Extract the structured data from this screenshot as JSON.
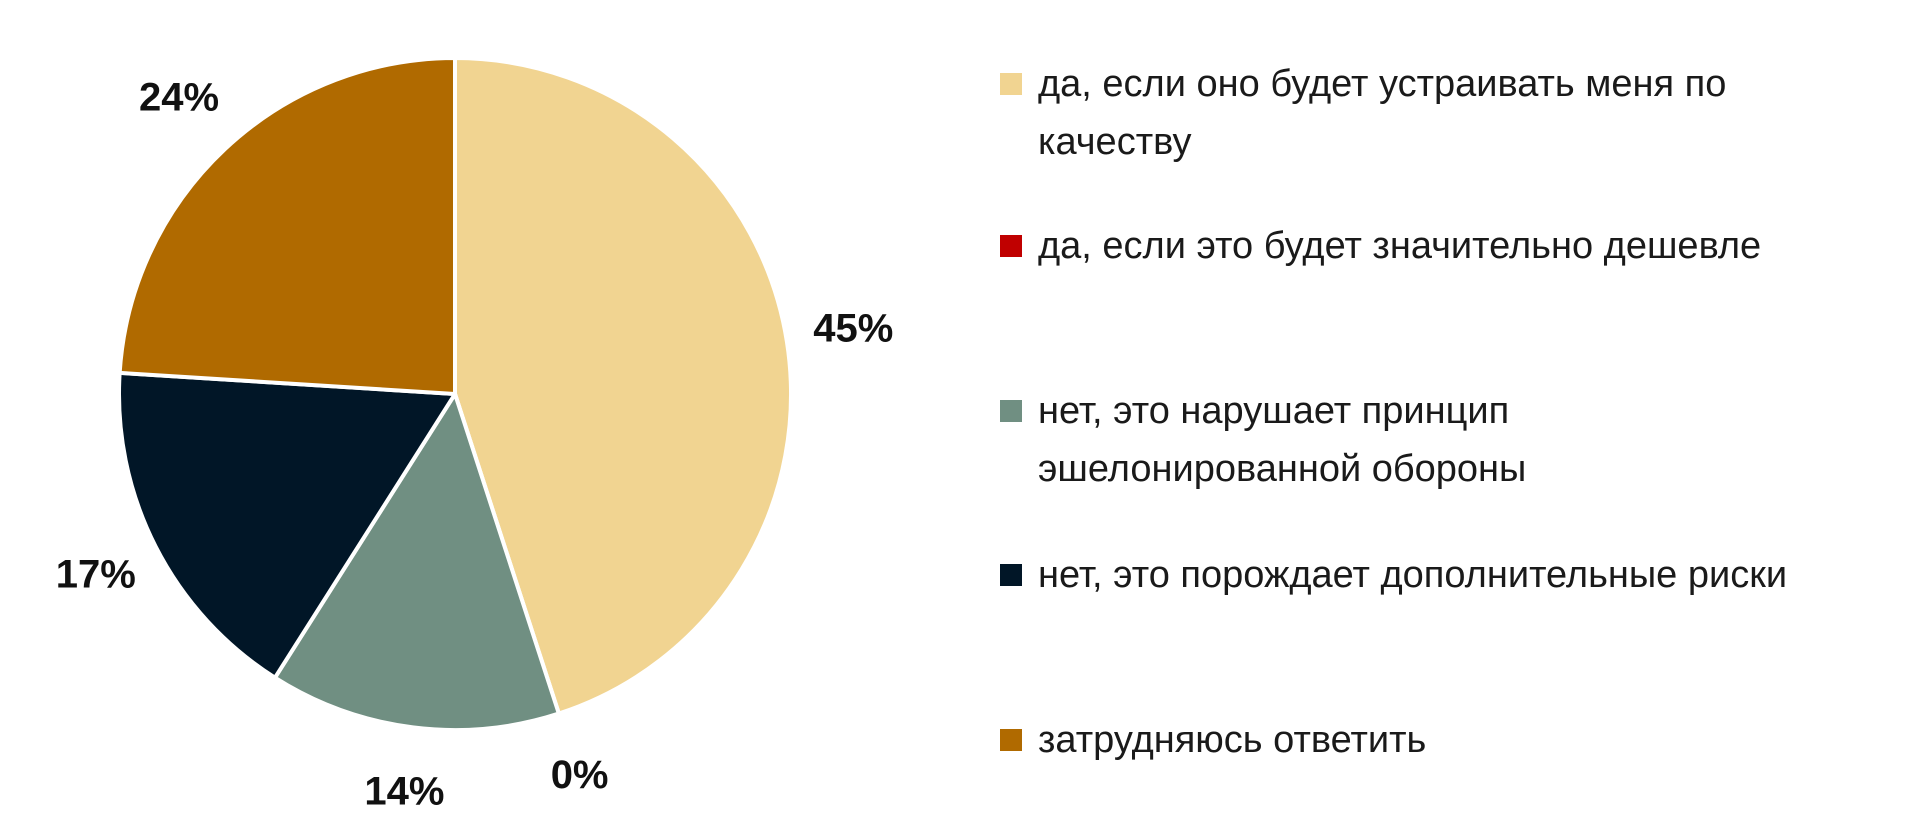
{
  "chart_data": {
    "type": "pie",
    "series": [
      {
        "name": "да, если оно будет устраивать меня по качеству",
        "color": "#f1d491",
        "values": [
          45
        ],
        "value_labels": [
          "45%"
        ]
      },
      {
        "name": "да, если это будет значительно дешевле",
        "color": "#c00000",
        "values": [
          0
        ],
        "value_labels": [
          "0%"
        ]
      },
      {
        "name": "нет, это нарушает принцип эшелонированной обороны",
        "color": "#708f82",
        "values": [
          14
        ],
        "value_labels": [
          "14%"
        ]
      },
      {
        "name": "нет, это порождает дополнительные риски",
        "color": "#011627",
        "values": [
          17
        ],
        "value_labels": [
          "17%"
        ]
      },
      {
        "name": "затрудняюсь ответить",
        "color": "#b06a00",
        "values": [
          24
        ],
        "value_labels": [
          "24%"
        ]
      }
    ]
  }
}
